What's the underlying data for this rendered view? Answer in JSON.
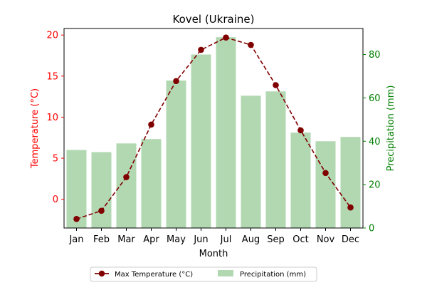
{
  "chart_data": {
    "type": "bar+line",
    "title": "Kovel (Ukraine)",
    "xlabel": "Month",
    "categories": [
      "Jan",
      "Feb",
      "Mar",
      "Apr",
      "May",
      "Jun",
      "Jul",
      "Aug",
      "Sep",
      "Oct",
      "Nov",
      "Dec"
    ],
    "y_left": {
      "label": "Temperature (°C)",
      "range": [
        -3.5,
        20.8
      ],
      "ticks": [
        0,
        5,
        10,
        15,
        20
      ],
      "color": "#ff0000"
    },
    "y_right": {
      "label": "Precipitation (mm)",
      "range": [
        0,
        92
      ],
      "ticks": [
        0,
        20,
        40,
        60,
        80
      ],
      "color": "#008000"
    },
    "series": [
      {
        "name": "Max Temperature (°C)",
        "type": "line",
        "axis": "left",
        "color": "#800000",
        "style": "dashed",
        "marker": "circle",
        "values": [
          -2.4,
          -1.4,
          2.7,
          9.1,
          14.4,
          18.2,
          19.7,
          18.8,
          13.9,
          8.4,
          3.2,
          -1.0
        ]
      },
      {
        "name": "Precipitation (mm)",
        "type": "bar",
        "axis": "right",
        "color": "#b2d8b2",
        "values": [
          36,
          35,
          39,
          41,
          68,
          80,
          88,
          61,
          63,
          44,
          40,
          42
        ]
      }
    ],
    "legend": {
      "placement": "bottom-center",
      "ncol": 2
    },
    "grid": false
  }
}
